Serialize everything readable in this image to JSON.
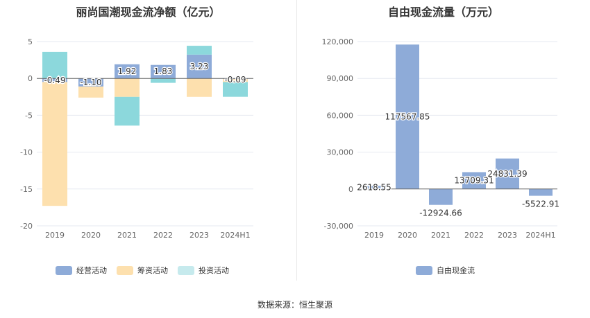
{
  "source_text": "数据来源：恒生聚源",
  "chart_data": [
    {
      "type": "bar",
      "stacked": true,
      "title": "丽尚国潮现金流净额（亿元）",
      "categories": [
        "2019",
        "2020",
        "2021",
        "2022",
        "2023",
        "2024H1"
      ],
      "series": [
        {
          "name": "经营活动",
          "color": "#8eabd8",
          "values": [
            -0.49,
            -1.1,
            1.92,
            1.83,
            3.23,
            -0.09
          ]
        },
        {
          "name": "筹资活动",
          "color": "#fde0ae",
          "values": [
            -16.8,
            -1.5,
            -2.5,
            0.0,
            -2.5,
            -0.4
          ]
        },
        {
          "name": "投资活动",
          "color": "#8cd8dc",
          "values": [
            3.6,
            0.0,
            -3.9,
            -0.6,
            1.2,
            -2.0
          ]
        }
      ],
      "data_labels": [
        "-0.49",
        "-1.10",
        "1.92",
        "1.83",
        "3.23",
        "-0.09"
      ],
      "yticks": [
        5,
        0,
        -5,
        -10,
        -15,
        -20
      ],
      "ylim": [
        -20,
        5
      ],
      "grid": true,
      "legend": "bottom"
    },
    {
      "type": "bar",
      "title": "自由现金流量（万元）",
      "categories": [
        "2019",
        "2020",
        "2021",
        "2022",
        "2023",
        "2024H1"
      ],
      "series": [
        {
          "name": "自由现金流",
          "color": "#8eabd8",
          "values": [
            2618.55,
            117567.85,
            -12924.66,
            13709.31,
            24831.39,
            -5522.91
          ]
        }
      ],
      "data_labels": [
        "2618.55",
        "117567.85",
        "-12924.66",
        "13709.31",
        "24831.39",
        "-5522.91"
      ],
      "yticks": [
        "120,000",
        "90,000",
        "60,000",
        "30,000",
        "0",
        "-30,000"
      ],
      "ylim": [
        -30000,
        120000
      ],
      "grid": true,
      "legend": "bottom"
    }
  ]
}
